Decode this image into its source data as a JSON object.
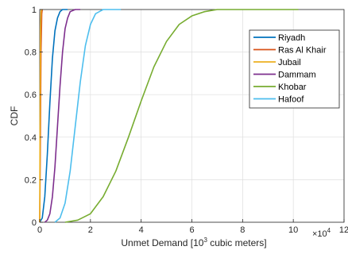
{
  "chart_data": {
    "type": "line",
    "xlabel_main": "Unmet Demand [10",
    "xlabel_sup": "3",
    "xlabel_end": " cubic meters]",
    "ylabel": "CDF",
    "x_exponent_base": "×10",
    "x_exponent_power": "4",
    "xlim": [
      0,
      120000
    ],
    "ylim": [
      0,
      1
    ],
    "x_tick_labels": [
      "0",
      "2",
      "4",
      "6",
      "8",
      "10",
      "12"
    ],
    "y_tick_labels": [
      "0",
      "0.2",
      "0.4",
      "0.6",
      "0.8",
      "1"
    ],
    "grid": true,
    "legend_location": "top-right",
    "series": [
      {
        "name": "Riyadh",
        "color": "#0072BD",
        "x": [
          0,
          1000,
          2000,
          3000,
          4000,
          5000,
          6000,
          7000,
          8000,
          9000,
          11000
        ],
        "y": [
          0,
          0.02,
          0.12,
          0.32,
          0.56,
          0.77,
          0.9,
          0.96,
          0.99,
          1.0,
          1.0
        ]
      },
      {
        "name": "Ras Al Khair",
        "color": "#D95319",
        "x": [
          0,
          200,
          500,
          800,
          1000
        ],
        "y": [
          0,
          0.3,
          0.8,
          0.98,
          1.0
        ]
      },
      {
        "name": "Jubail",
        "color": "#EDB120",
        "x": [
          0,
          100,
          300,
          500,
          700
        ],
        "y": [
          0,
          0.4,
          0.9,
          0.99,
          1.0
        ]
      },
      {
        "name": "Dammam",
        "color": "#7E2F8E",
        "x": [
          2000,
          3000,
          4000,
          5000,
          6000,
          7000,
          8000,
          9000,
          10000,
          11000,
          12000,
          14000,
          16000
        ],
        "y": [
          0,
          0.01,
          0.04,
          0.12,
          0.26,
          0.45,
          0.64,
          0.8,
          0.91,
          0.96,
          0.99,
          1.0,
          1.0
        ]
      },
      {
        "name": "Khobar",
        "color": "#77AC30",
        "x": [
          10000,
          15000,
          20000,
          25000,
          30000,
          35000,
          40000,
          45000,
          50000,
          55000,
          60000,
          65000,
          70000,
          80000,
          90000,
          102000
        ],
        "y": [
          0,
          0.01,
          0.04,
          0.12,
          0.24,
          0.4,
          0.57,
          0.73,
          0.85,
          0.93,
          0.97,
          0.99,
          1.0,
          1.0,
          1.0,
          1.0
        ]
      },
      {
        "name": "Hafoof",
        "color": "#4DBEEE",
        "x": [
          6000,
          8000,
          10000,
          12000,
          14000,
          16000,
          18000,
          20000,
          22000,
          25000,
          32000
        ],
        "y": [
          0,
          0.02,
          0.09,
          0.24,
          0.45,
          0.66,
          0.83,
          0.93,
          0.98,
          1.0,
          1.0
        ]
      }
    ]
  }
}
